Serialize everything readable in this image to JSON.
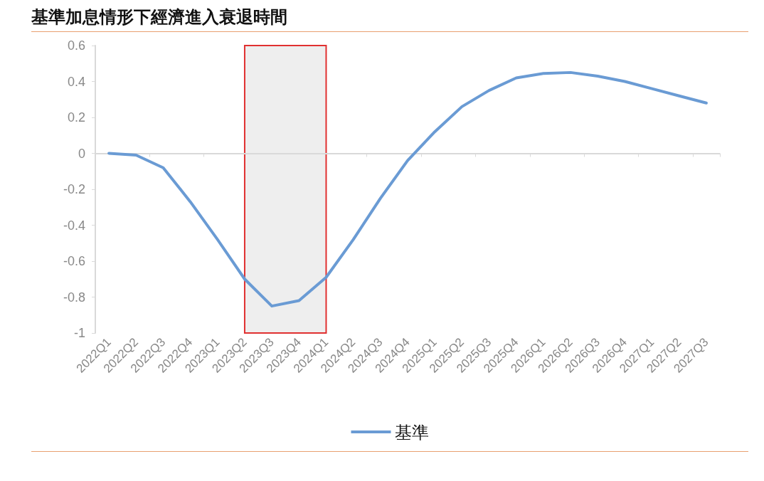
{
  "chart_data": {
    "type": "line",
    "title": "基準加息情形下經濟進入衰退時間",
    "categories": [
      "2022Q1",
      "2022Q2",
      "2022Q3",
      "2022Q4",
      "2023Q1",
      "2023Q2",
      "2023Q3",
      "2023Q4",
      "2024Q1",
      "2024Q2",
      "2024Q3",
      "2024Q4",
      "2025Q1",
      "2025Q2",
      "2025Q3",
      "2025Q4",
      "2026Q1",
      "2026Q2",
      "2026Q3",
      "2026Q4",
      "2027Q1",
      "2027Q2",
      "2027Q3"
    ],
    "series": [
      {
        "name": "基準",
        "color": "#6a9bd4",
        "values": [
          0,
          -0.01,
          -0.08,
          -0.27,
          -0.48,
          -0.7,
          -0.85,
          -0.82,
          -0.69,
          -0.48,
          -0.25,
          -0.04,
          0.12,
          0.26,
          0.35,
          0.42,
          0.445,
          0.45,
          0.43,
          0.4,
          0.36,
          0.32,
          0.28
        ]
      }
    ],
    "ylim": [
      -1,
      0.6
    ],
    "yticks": [
      -1,
      -0.8,
      -0.6,
      -0.4,
      -0.2,
      0,
      0.2,
      0.4,
      0.6
    ],
    "bands": [
      {
        "axis": "x",
        "from": "2023Q2",
        "to": "2024Q1",
        "color": "#eeeeee"
      }
    ],
    "ref_lines": [
      {
        "axis": "y",
        "value": 0,
        "color": "#d9d9d9",
        "line_style": "solid"
      }
    ],
    "grid": false,
    "legend": "bottom",
    "marker": "none",
    "line_style": "solid"
  }
}
